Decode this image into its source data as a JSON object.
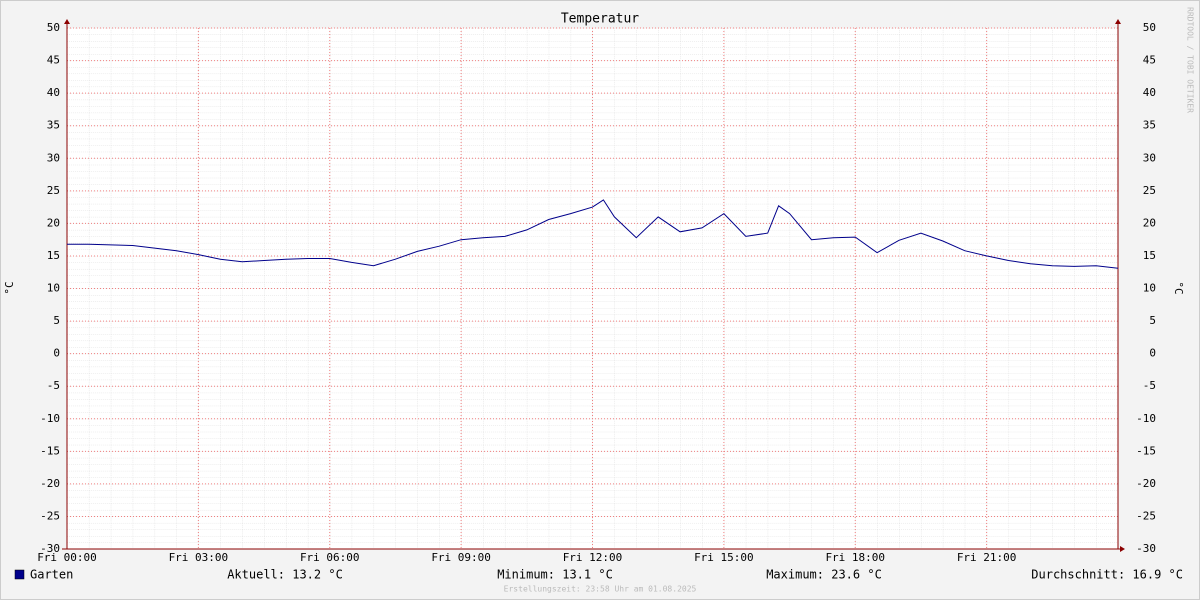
{
  "chart_data": {
    "type": "line",
    "title": "Temperatur",
    "ylabel": "°C",
    "y2label": "°C",
    "x": [
      0,
      0.5,
      1,
      1.5,
      2,
      2.5,
      3,
      3.5,
      4,
      4.5,
      5,
      5.5,
      6,
      6.5,
      7,
      7.5,
      8,
      8.5,
      9,
      9.5,
      10,
      10.5,
      11,
      11.5,
      12,
      12.25,
      12.5,
      13,
      13.5,
      14,
      14.5,
      15,
      15.5,
      16,
      16.25,
      16.5,
      17,
      17.5,
      18,
      18.5,
      19,
      19.5,
      20,
      20.5,
      21,
      21.5,
      22,
      22.5,
      23,
      23.5,
      24
    ],
    "series": [
      {
        "name": "Garten",
        "color": "#00008b",
        "values": [
          16.8,
          16.8,
          16.7,
          16.6,
          16.2,
          15.8,
          15.2,
          14.5,
          14.1,
          14.3,
          14.5,
          14.6,
          14.6,
          14.0,
          13.5,
          14.5,
          15.7,
          16.5,
          17.5,
          17.8,
          18.0,
          19.0,
          20.6,
          21.5,
          22.5,
          23.6,
          21.0,
          17.8,
          21.0,
          18.7,
          19.3,
          21.5,
          18.0,
          18.5,
          22.7,
          21.5,
          17.5,
          17.8,
          17.9,
          15.5,
          17.4,
          18.5,
          17.3,
          15.8,
          15.0,
          14.3,
          13.8,
          13.5,
          13.4,
          13.5,
          13.1
        ]
      }
    ],
    "xlim": [
      0,
      24
    ],
    "xticks": [
      {
        "value": 0,
        "label": "Fri 00:00"
      },
      {
        "value": 3,
        "label": "Fri 03:00"
      },
      {
        "value": 6,
        "label": "Fri 06:00"
      },
      {
        "value": 9,
        "label": "Fri 09:00"
      },
      {
        "value": 12,
        "label": "Fri 12:00"
      },
      {
        "value": 15,
        "label": "Fri 15:00"
      },
      {
        "value": 18,
        "label": "Fri 18:00"
      },
      {
        "value": 21,
        "label": "Fri 21:00"
      }
    ],
    "ylim": [
      -30,
      50
    ],
    "yticks": [
      -30,
      -25,
      -20,
      -15,
      -10,
      -5,
      0,
      5,
      10,
      15,
      20,
      25,
      30,
      35,
      40,
      45,
      50
    ],
    "grid": true,
    "stats": [
      "Aktuell: 13.2 °C",
      "Minimum: 13.1 °C",
      "Maximum: 23.6 °C",
      "Durchschnitt: 16.9 °C"
    ],
    "footer": "Erstellungszeit: 23:58 Uhr am 01.08.2025",
    "watermark": "RRDTOOL / TOBI OETIKER"
  }
}
